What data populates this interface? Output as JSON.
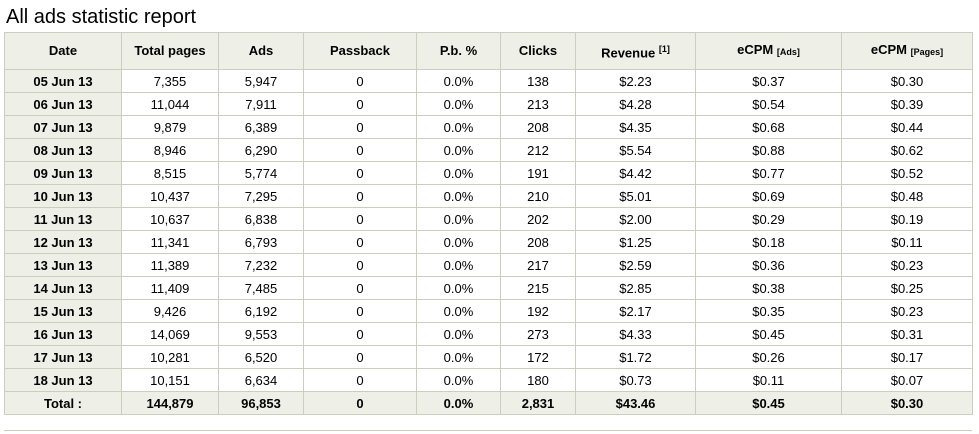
{
  "page": {
    "title": "All ads statistic report"
  },
  "table": {
    "headers": [
      {
        "main": "Date",
        "sup": "",
        "sub": ""
      },
      {
        "main": "Total pages",
        "sup": "",
        "sub": ""
      },
      {
        "main": "Ads",
        "sup": "",
        "sub": ""
      },
      {
        "main": "Passback",
        "sup": "",
        "sub": ""
      },
      {
        "main": "P.b. %",
        "sup": "",
        "sub": ""
      },
      {
        "main": "Clicks",
        "sup": "",
        "sub": ""
      },
      {
        "main": "Revenue",
        "sup": "[1]",
        "sub": ""
      },
      {
        "main": "eCPM",
        "sup": "",
        "sub": "[Ads]"
      },
      {
        "main": "eCPM",
        "sup": "",
        "sub": "[Pages]"
      }
    ],
    "rows": [
      [
        "05 Jun 13",
        "7,355",
        "5,947",
        "0",
        "0.0%",
        "138",
        "$2.23",
        "$0.37",
        "$0.30"
      ],
      [
        "06 Jun 13",
        "11,044",
        "7,911",
        "0",
        "0.0%",
        "213",
        "$4.28",
        "$0.54",
        "$0.39"
      ],
      [
        "07 Jun 13",
        "9,879",
        "6,389",
        "0",
        "0.0%",
        "208",
        "$4.35",
        "$0.68",
        "$0.44"
      ],
      [
        "08 Jun 13",
        "8,946",
        "6,290",
        "0",
        "0.0%",
        "212",
        "$5.54",
        "$0.88",
        "$0.62"
      ],
      [
        "09 Jun 13",
        "8,515",
        "5,774",
        "0",
        "0.0%",
        "191",
        "$4.42",
        "$0.77",
        "$0.52"
      ],
      [
        "10 Jun 13",
        "10,437",
        "7,295",
        "0",
        "0.0%",
        "210",
        "$5.01",
        "$0.69",
        "$0.48"
      ],
      [
        "11 Jun 13",
        "10,637",
        "6,838",
        "0",
        "0.0%",
        "202",
        "$2.00",
        "$0.29",
        "$0.19"
      ],
      [
        "12 Jun 13",
        "11,341",
        "6,793",
        "0",
        "0.0%",
        "208",
        "$1.25",
        "$0.18",
        "$0.11"
      ],
      [
        "13 Jun 13",
        "11,389",
        "7,232",
        "0",
        "0.0%",
        "217",
        "$2.59",
        "$0.36",
        "$0.23"
      ],
      [
        "14 Jun 13",
        "11,409",
        "7,485",
        "0",
        "0.0%",
        "215",
        "$2.85",
        "$0.38",
        "$0.25"
      ],
      [
        "15 Jun 13",
        "9,426",
        "6,192",
        "0",
        "0.0%",
        "192",
        "$2.17",
        "$0.35",
        "$0.23"
      ],
      [
        "16 Jun 13",
        "14,069",
        "9,553",
        "0",
        "0.0%",
        "273",
        "$4.33",
        "$0.45",
        "$0.31"
      ],
      [
        "17 Jun 13",
        "10,281",
        "6,520",
        "0",
        "0.0%",
        "172",
        "$1.72",
        "$0.26",
        "$0.17"
      ],
      [
        "18 Jun 13",
        "10,151",
        "6,634",
        "0",
        "0.0%",
        "180",
        "$0.73",
        "$0.11",
        "$0.07"
      ]
    ],
    "total": [
      "Total :",
      "144,879",
      "96,853",
      "0",
      "0.0%",
      "2,831",
      "$43.46",
      "$0.45",
      "$0.30"
    ]
  },
  "colors": {
    "header_bg": "#eef0e8",
    "border": "#c8cfbf"
  }
}
